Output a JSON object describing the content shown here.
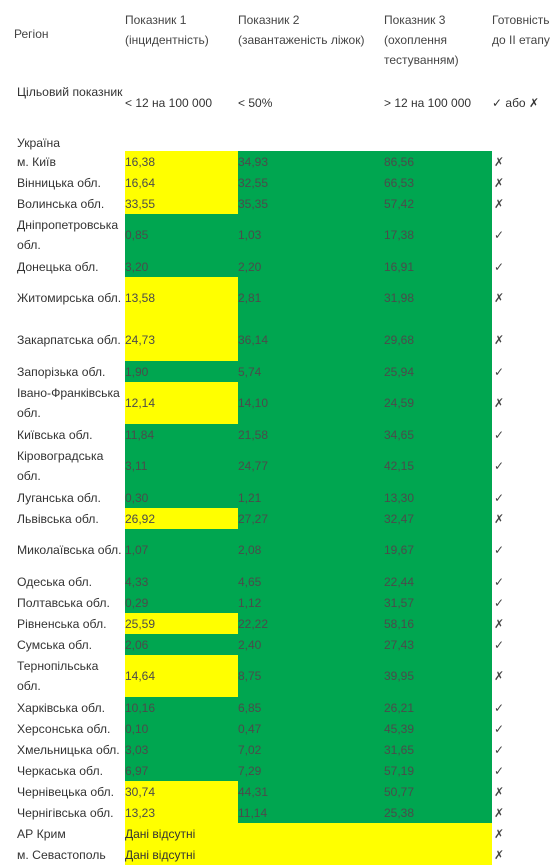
{
  "header": {
    "region": "Регіон",
    "p1": "Показник 1 (інцидентність)",
    "p2": "Показник 2 (завантаженість ліжок)",
    "p3": "Показник 3 (охоплення тестуванням)",
    "ready": "Готовність до ІІ етапу"
  },
  "target": {
    "label": "Цільовий показник",
    "p1": "< 12 на 100 000",
    "p2": "< 50%",
    "p3": "> 12 на 100 000",
    "ready": "✓ або ✗"
  },
  "ukraine_label": "Україна",
  "rows": [
    {
      "region": "м. Київ",
      "p1": "16,38",
      "p2": "34,93",
      "p3": "86,56",
      "ready": "✗",
      "c1": "y",
      "c2": "g",
      "c3": "g",
      "lines": 1
    },
    {
      "region": "Вінницька обл.",
      "p1": "16,64",
      "p2": "32,55",
      "p3": "66,53",
      "ready": "✗",
      "c1": "y",
      "c2": "g",
      "c3": "g",
      "lines": 1
    },
    {
      "region": "Волинська обл.",
      "p1": "33,55",
      "p2": "35,35",
      "p3": "57,42",
      "ready": "✗",
      "c1": "y",
      "c2": "g",
      "c3": "g",
      "lines": 1
    },
    {
      "region": "Дніпропетровська обл.",
      "p1": "0,85",
      "p2": "1,03",
      "p3": "17,38",
      "ready": "✓",
      "c1": "g",
      "c2": "g",
      "c3": "g",
      "lines": 2
    },
    {
      "region": "Донецька обл.",
      "p1": "3,20",
      "p2": "2,20",
      "p3": "16,91",
      "ready": "✓",
      "c1": "g",
      "c2": "g",
      "c3": "g",
      "lines": 1
    },
    {
      "region": "Житомирська обл.",
      "p1": "13,58",
      "p2": "2,81",
      "p3": "31,98",
      "ready": "✗",
      "c1": "y",
      "c2": "g",
      "c3": "g",
      "lines": 2
    },
    {
      "region": "Закарпатська обл.",
      "p1": "24,73",
      "p2": "36,14",
      "p3": "29,68",
      "ready": "✗",
      "c1": "y",
      "c2": "g",
      "c3": "g",
      "lines": 2
    },
    {
      "region": "Запорізька обл.",
      "p1": "1,90",
      "p2": "5,74",
      "p3": "25,94",
      "ready": "✓",
      "c1": "g",
      "c2": "g",
      "c3": "g",
      "lines": 1
    },
    {
      "region": "Івано-Франківська обл.",
      "p1": "12,14",
      "p2": "14,10",
      "p3": "24,59",
      "ready": "✗",
      "c1": "y",
      "c2": "g",
      "c3": "g",
      "lines": 2
    },
    {
      "region": "Київська обл.",
      "p1": "11,84",
      "p2": "21,58",
      "p3": "34,65",
      "ready": "✓",
      "c1": "g",
      "c2": "g",
      "c3": "g",
      "lines": 1
    },
    {
      "region": "Кіровоградська обл.",
      "p1": "3,11",
      "p2": "24,77",
      "p3": "42,15",
      "ready": "✓",
      "c1": "g",
      "c2": "g",
      "c3": "g",
      "lines": 2
    },
    {
      "region": "Луганська обл.",
      "p1": "0,30",
      "p2": "1,21",
      "p3": "13,30",
      "ready": "✓",
      "c1": "g",
      "c2": "g",
      "c3": "g",
      "lines": 1
    },
    {
      "region": "Львівська обл.",
      "p1": "26,92",
      "p2": "27,27",
      "p3": "32,47",
      "ready": "✗",
      "c1": "y",
      "c2": "g",
      "c3": "g",
      "lines": 1
    },
    {
      "region": "Миколаївська обл.",
      "p1": "1,07",
      "p2": "2,08",
      "p3": "19,67",
      "ready": "✓",
      "c1": "g",
      "c2": "g",
      "c3": "g",
      "lines": 2
    },
    {
      "region": "Одеська обл.",
      "p1": "4,33",
      "p2": "4,65",
      "p3": "22,44",
      "ready": "✓",
      "c1": "g",
      "c2": "g",
      "c3": "g",
      "lines": 1
    },
    {
      "region": "Полтавська обл.",
      "p1": "0,29",
      "p2": "1,12",
      "p3": "31,57",
      "ready": "✓",
      "c1": "g",
      "c2": "g",
      "c3": "g",
      "lines": 1
    },
    {
      "region": "Рівненська обл.",
      "p1": "25,59",
      "p2": "22,22",
      "p3": "58,16",
      "ready": "✗",
      "c1": "y",
      "c2": "g",
      "c3": "g",
      "lines": 1
    },
    {
      "region": "Сумська обл.",
      "p1": "2,06",
      "p2": "2,40",
      "p3": "27,43",
      "ready": "✓",
      "c1": "g",
      "c2": "g",
      "c3": "g",
      "lines": 1
    },
    {
      "region": "Тернопільська обл.",
      "p1": "14,64",
      "p2": "8,75",
      "p3": "39,95",
      "ready": "✗",
      "c1": "y",
      "c2": "g",
      "c3": "g",
      "lines": 2
    },
    {
      "region": "Харківська обл.",
      "p1": "10,16",
      "p2": "6,85",
      "p3": "26,21",
      "ready": "✓",
      "c1": "g",
      "c2": "g",
      "c3": "g",
      "lines": 1
    },
    {
      "region": "Херсонська обл.",
      "p1": "0,10",
      "p2": "0,47",
      "p3": "45,39",
      "ready": "✓",
      "c1": "g",
      "c2": "g",
      "c3": "g",
      "lines": 1
    },
    {
      "region": "Хмельницька обл.",
      "p1": "3,03",
      "p2": "7,02",
      "p3": "31,65",
      "ready": "✓",
      "c1": "g",
      "c2": "g",
      "c3": "g",
      "lines": 1
    },
    {
      "region": "Черкаська обл.",
      "p1": "6,97",
      "p2": "7,29",
      "p3": "57,19",
      "ready": "✓",
      "c1": "g",
      "c2": "g",
      "c3": "g",
      "lines": 1
    },
    {
      "region": "Чернівецька обл.",
      "p1": "30,74",
      "p2": "44,31",
      "p3": "50,77",
      "ready": "✗",
      "c1": "y",
      "c2": "g",
      "c3": "g",
      "lines": 1
    },
    {
      "region": "Чернігівська обл.",
      "p1": "13,23",
      "p2": "11,14",
      "p3": "25,38",
      "ready": "✗",
      "c1": "y",
      "c2": "g",
      "c3": "g",
      "lines": 1
    }
  ],
  "missing_rows": [
    {
      "region": "АР Крим",
      "text": "Дані відсутні",
      "ready": "✗"
    },
    {
      "region": "м. Севастополь",
      "text": "Дані відсутні",
      "ready": "✗"
    }
  ],
  "colors": {
    "green": "#00a650",
    "yellow": "#ffff00"
  }
}
